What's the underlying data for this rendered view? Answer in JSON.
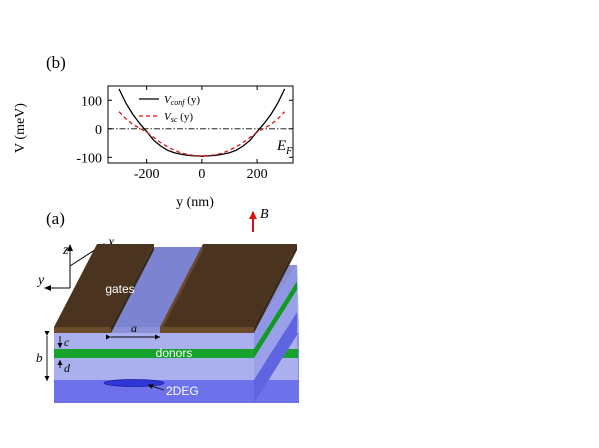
{
  "panel_b": {
    "label": "(b)",
    "ylabel": "V (meV)",
    "xlabel": "y (nm)",
    "fermi_label_main": "E",
    "fermi_label_sub": "F",
    "legend": [
      {
        "main": "V",
        "sub": "conf",
        "tail": " (y)",
        "color": "#000000",
        "dash": "none"
      },
      {
        "main": "V",
        "sub": "sc",
        "tail": " (y)",
        "color": "#dd1111",
        "dash": "4,3"
      }
    ]
  },
  "chart_data": {
    "type": "line",
    "xlabel": "y (nm)",
    "ylabel": "V (meV)",
    "xlim": [
      -340,
      330
    ],
    "ylim": [
      -120,
      150
    ],
    "xticks": [
      -200,
      0,
      200
    ],
    "yticks": [
      -100,
      0,
      100
    ],
    "reference_line": {
      "y": 0,
      "style": "dash-dot",
      "label": "E_F"
    },
    "series": [
      {
        "name": "Vconf (y)",
        "color": "#000000",
        "x": [
          -300,
          -275,
          -250,
          -225,
          -200,
          -175,
          -150,
          -125,
          -100,
          -75,
          -50,
          -25,
          0,
          25,
          50,
          75,
          100,
          125,
          150,
          175,
          200,
          225,
          250,
          275,
          300
        ],
        "y": [
          140,
          90,
          50,
          18,
          -10,
          -40,
          -60,
          -75,
          -84,
          -89,
          -93,
          -95,
          -96,
          -95,
          -93,
          -89,
          -84,
          -75,
          -60,
          -40,
          -10,
          18,
          50,
          90,
          140
        ]
      },
      {
        "name": "Vsc (y)",
        "color": "#dd1111",
        "x": [
          -300,
          -275,
          -250,
          -225,
          -200,
          -175,
          -150,
          -125,
          -100,
          -75,
          -50,
          -25,
          0,
          25,
          50,
          75,
          100,
          125,
          150,
          175,
          200,
          225,
          250,
          275,
          300
        ],
        "y": [
          60,
          35,
          15,
          2,
          -12,
          -30,
          -48,
          -63,
          -75,
          -85,
          -91,
          -94,
          -95,
          -94,
          -91,
          -85,
          -75,
          -63,
          -48,
          -30,
          -12,
          2,
          15,
          35,
          60
        ]
      }
    ]
  },
  "panel_a": {
    "label": "(a)",
    "axis_z": "z",
    "axis_x": "x",
    "axis_y": "y",
    "field_label": "B",
    "gates_label": "gates",
    "donors_label": "donors",
    "twodeg_label": "2DEG",
    "dim_a": "a",
    "dim_b": "b",
    "dim_c": "c",
    "dim_d": "d",
    "colors": {
      "gate": "#4a3420",
      "gate_top": "#5a3d24",
      "donor": "#17a32b",
      "field_arrow": "#dd1111",
      "layer_light": "#aab0ee",
      "layer_dark": "#6e72ea",
      "twodeg": "#2f35d8"
    }
  }
}
